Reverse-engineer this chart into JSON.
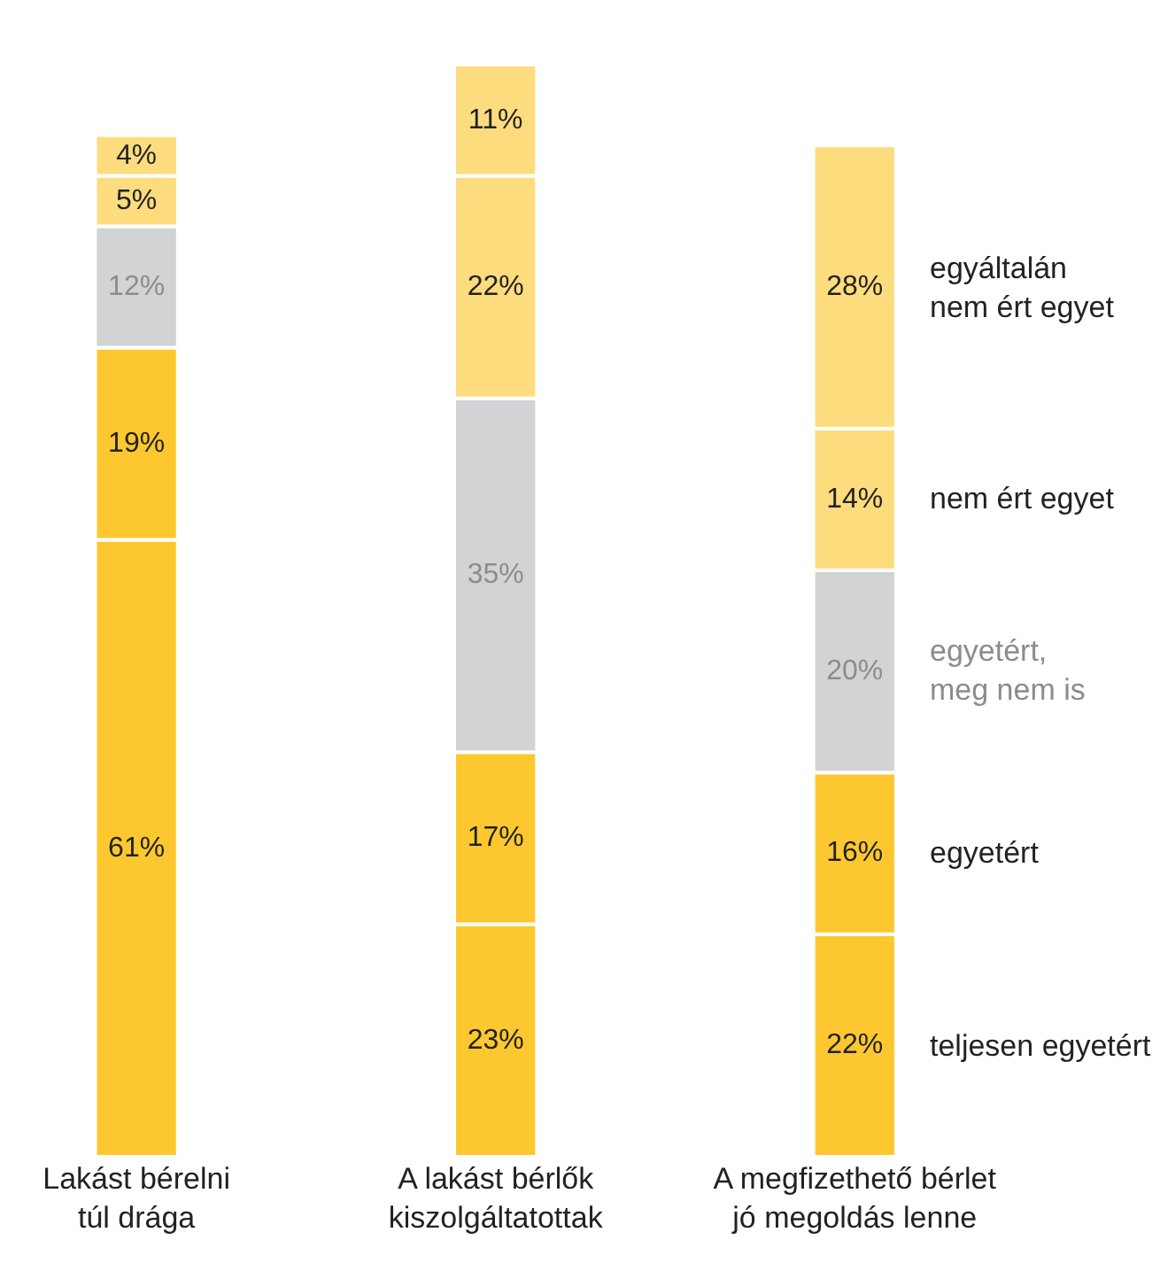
{
  "chart_data": {
    "type": "bar",
    "stacked": true,
    "categories": [
      "Lakást bérelni\ntúl drága",
      "A lakást bérlők\nkiszolgáltatottak",
      "A megfizethető bérlet\njó megoldás lenne"
    ],
    "series": [
      {
        "name": "teljesen egyetért",
        "color": "#fdc82f",
        "values": [
          61,
          23,
          22
        ],
        "value_labels": [
          "61%",
          "23%",
          "22%"
        ]
      },
      {
        "name": "egyetért",
        "color": "#fdc82f",
        "values": [
          19,
          17,
          16
        ],
        "value_labels": [
          "19%",
          "17%",
          "16%"
        ]
      },
      {
        "name": "egyetért,\nmeg nem is",
        "color": "#d1d3d4",
        "values": [
          12,
          35,
          20
        ],
        "value_labels": [
          "12%",
          "35%",
          "20%"
        ]
      },
      {
        "name": "nem ért egyet",
        "color": "#fddc7e",
        "values": [
          5,
          22,
          14
        ],
        "value_labels": [
          "5%",
          "22%",
          "14%"
        ]
      },
      {
        "name": "egyáltalán\nnem ért egyet",
        "color": "#fddc7e",
        "values": [
          4,
          11,
          28
        ],
        "value_labels": [
          "4%",
          "11%",
          "28%"
        ]
      }
    ]
  }
}
